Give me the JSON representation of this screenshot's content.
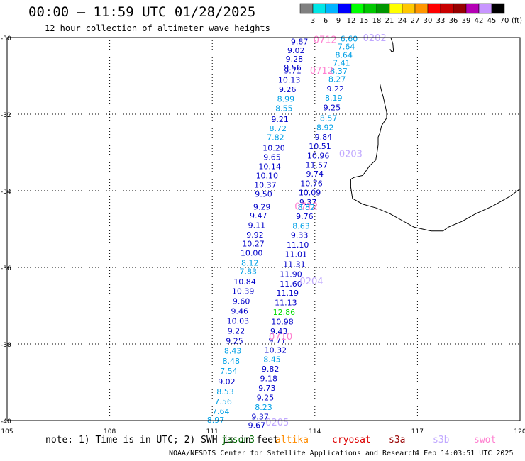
{
  "header": {
    "title": "00:00 – 11:59 UTC 01/28/2025",
    "subtitle": "12 hour collection of altimeter wave heights"
  },
  "color_scale": {
    "labels": [
      "3",
      "6",
      "9",
      "12",
      "15",
      "18",
      "21",
      "24",
      "27",
      "30",
      "33",
      "36",
      "39",
      "42",
      "45",
      "70"
    ],
    "unit": "(ft)",
    "colors": [
      "#808080",
      "#00e6e6",
      "#00b4ff",
      "#0000ff",
      "#00ff00",
      "#00c800",
      "#009600",
      "#ffff00",
      "#ffc800",
      "#ff9600",
      "#ff0000",
      "#c80000",
      "#960000",
      "#b400b4",
      "#c896ff",
      "#000000"
    ]
  },
  "map": {
    "lon_range": [
      105,
      120
    ],
    "lat_range": [
      -40,
      -30
    ],
    "lon_ticks": [
      "105",
      "108",
      "111",
      "114",
      "117",
      "120"
    ],
    "lat_ticks": [
      "-30",
      "-32",
      "-34",
      "-36",
      "-38",
      "-40"
    ],
    "coastline": [
      [
        115.9,
        -31.2
      ],
      [
        115.95,
        -31.4
      ],
      [
        116.0,
        -31.55
      ],
      [
        116.05,
        -31.75
      ],
      [
        116.1,
        -31.95
      ],
      [
        116.1,
        -32.1
      ],
      [
        115.95,
        -32.3
      ],
      [
        115.9,
        -32.5
      ],
      [
        115.85,
        -32.6
      ],
      [
        115.85,
        -32.8
      ],
      [
        115.82,
        -33.0
      ],
      [
        115.78,
        -33.2
      ],
      [
        115.6,
        -33.35
      ],
      [
        115.4,
        -33.6
      ],
      [
        115.15,
        -33.65
      ],
      [
        115.05,
        -33.7
      ],
      [
        115.05,
        -33.9
      ],
      [
        115.1,
        -34.2
      ],
      [
        115.4,
        -34.35
      ],
      [
        115.8,
        -34.45
      ],
      [
        116.2,
        -34.6
      ],
      [
        116.5,
        -34.75
      ],
      [
        116.9,
        -34.95
      ],
      [
        117.4,
        -35.05
      ],
      [
        117.75,
        -35.05
      ],
      [
        117.9,
        -34.95
      ],
      [
        118.3,
        -34.8
      ],
      [
        118.7,
        -34.6
      ],
      [
        119.2,
        -34.4
      ],
      [
        119.7,
        -34.15
      ],
      [
        120.0,
        -33.95
      ]
    ],
    "island": [
      [
        116.22,
        -30.0
      ],
      [
        116.28,
        -30.15
      ],
      [
        116.3,
        -30.35
      ],
      [
        116.25,
        -30.38
      ],
      [
        116.2,
        -30.3
      ]
    ]
  },
  "observations": [
    {
      "lon": 113.55,
      "lat": -30.1,
      "value": "9.87",
      "color": "#0000c8"
    },
    {
      "lon": 113.45,
      "lat": -30.33,
      "value": "9.02",
      "color": "#0000c8"
    },
    {
      "lon": 113.4,
      "lat": -30.56,
      "value": "9.28",
      "color": "#0000c8"
    },
    {
      "lon": 113.35,
      "lat": -30.78,
      "value": "9.56",
      "color": "#0000c8"
    },
    {
      "lon": 113.35,
      "lat": -30.86,
      "value": "9.71",
      "color": "#0000c8"
    },
    {
      "lon": 113.25,
      "lat": -31.1,
      "value": "10.13",
      "color": "#0000c8"
    },
    {
      "lon": 113.2,
      "lat": -31.35,
      "value": "9.26",
      "color": "#0000c8"
    },
    {
      "lon": 113.15,
      "lat": -31.6,
      "value": "8.99",
      "color": "#00a0e6"
    },
    {
      "lon": 113.1,
      "lat": -31.84,
      "value": "8.55",
      "color": "#00a0e6"
    },
    {
      "lon": 112.98,
      "lat": -32.13,
      "value": "9.21",
      "color": "#0000c8"
    },
    {
      "lon": 112.92,
      "lat": -32.37,
      "value": "8.72",
      "color": "#00a0e6"
    },
    {
      "lon": 112.85,
      "lat": -32.6,
      "value": "7.82",
      "color": "#00a0e6"
    },
    {
      "lon": 112.8,
      "lat": -32.88,
      "value": "10.20",
      "color": "#0000c8"
    },
    {
      "lon": 112.75,
      "lat": -33.12,
      "value": "9.65",
      "color": "#0000c8"
    },
    {
      "lon": 112.68,
      "lat": -33.36,
      "value": "10.14",
      "color": "#0000c8"
    },
    {
      "lon": 112.6,
      "lat": -33.6,
      "value": "10.10",
      "color": "#0000c8"
    },
    {
      "lon": 112.55,
      "lat": -33.84,
      "value": "10.37",
      "color": "#0000c8"
    },
    {
      "lon": 112.5,
      "lat": -34.08,
      "value": "9.50",
      "color": "#0000c8"
    },
    {
      "lon": 112.45,
      "lat": -34.42,
      "value": "9.29",
      "color": "#0000c8"
    },
    {
      "lon": 112.35,
      "lat": -34.65,
      "value": "9.47",
      "color": "#0000c8"
    },
    {
      "lon": 112.3,
      "lat": -34.9,
      "value": "9.11",
      "color": "#0000c8"
    },
    {
      "lon": 112.25,
      "lat": -35.15,
      "value": "9.92",
      "color": "#0000c8"
    },
    {
      "lon": 112.2,
      "lat": -35.38,
      "value": "10.27",
      "color": "#0000c8"
    },
    {
      "lon": 112.15,
      "lat": -35.62,
      "value": "10.00",
      "color": "#0000c8"
    },
    {
      "lon": 112.1,
      "lat": -35.88,
      "value": "8.12",
      "color": "#00a0e6"
    },
    {
      "lon": 112.05,
      "lat": -36.1,
      "value": "7.83",
      "color": "#00a0e6"
    },
    {
      "lon": 111.95,
      "lat": -36.37,
      "value": "10.84",
      "color": "#0000c8"
    },
    {
      "lon": 111.9,
      "lat": -36.62,
      "value": "10.39",
      "color": "#0000c8"
    },
    {
      "lon": 111.85,
      "lat": -36.88,
      "value": "9.60",
      "color": "#0000c8"
    },
    {
      "lon": 111.8,
      "lat": -37.14,
      "value": "9.46",
      "color": "#0000c8"
    },
    {
      "lon": 111.75,
      "lat": -37.4,
      "value": "10.03",
      "color": "#0000c8"
    },
    {
      "lon": 111.7,
      "lat": -37.66,
      "value": "9.22",
      "color": "#0000c8"
    },
    {
      "lon": 111.65,
      "lat": -37.92,
      "value": "9.25",
      "color": "#0000c8"
    },
    {
      "lon": 111.6,
      "lat": -38.18,
      "value": "8.43",
      "color": "#00a0e6"
    },
    {
      "lon": 111.55,
      "lat": -38.44,
      "value": "8.48",
      "color": "#00a0e6"
    },
    {
      "lon": 111.48,
      "lat": -38.7,
      "value": "7.54",
      "color": "#00a0e6"
    },
    {
      "lon": 111.42,
      "lat": -38.98,
      "value": "9.02",
      "color": "#0000c8"
    },
    {
      "lon": 111.38,
      "lat": -39.24,
      "value": "8.53",
      "color": "#00a0e6"
    },
    {
      "lon": 111.32,
      "lat": -39.5,
      "value": "7.56",
      "color": "#00a0e6"
    },
    {
      "lon": 111.25,
      "lat": -39.76,
      "value": "7.64",
      "color": "#00a0e6"
    },
    {
      "lon": 111.1,
      "lat": -39.98,
      "value": "8.97",
      "color": "#00a0e6"
    },
    {
      "lon": 115.0,
      "lat": -30.03,
      "value": "6.60",
      "color": "#00a0e6"
    },
    {
      "lon": 114.92,
      "lat": -30.23,
      "value": "7.64",
      "color": "#00a0e6"
    },
    {
      "lon": 114.85,
      "lat": -30.45,
      "value": "8.64",
      "color": "#00a0e6"
    },
    {
      "lon": 114.78,
      "lat": -30.66,
      "value": "7.41",
      "color": "#00a0e6"
    },
    {
      "lon": 114.7,
      "lat": -30.87,
      "value": "8.37",
      "color": "#00a0e6"
    },
    {
      "lon": 114.65,
      "lat": -31.08,
      "value": "8.27",
      "color": "#00a0e6"
    },
    {
      "lon": 114.6,
      "lat": -31.33,
      "value": "9.22",
      "color": "#0000c8"
    },
    {
      "lon": 114.55,
      "lat": -31.57,
      "value": "8.19",
      "color": "#00a0e6"
    },
    {
      "lon": 114.5,
      "lat": -31.82,
      "value": "9.25",
      "color": "#0000c8"
    },
    {
      "lon": 114.4,
      "lat": -32.1,
      "value": "8.57",
      "color": "#00a0e6"
    },
    {
      "lon": 114.3,
      "lat": -32.34,
      "value": "8.92",
      "color": "#00a0e6"
    },
    {
      "lon": 114.25,
      "lat": -32.59,
      "value": "9.84",
      "color": "#0000c8"
    },
    {
      "lon": 114.15,
      "lat": -32.83,
      "value": "10.51",
      "color": "#0000c8"
    },
    {
      "lon": 114.1,
      "lat": -33.08,
      "value": "10.96",
      "color": "#0000c8"
    },
    {
      "lon": 114.05,
      "lat": -33.32,
      "value": "11.57",
      "color": "#0000c8"
    },
    {
      "lon": 114.0,
      "lat": -33.56,
      "value": "9.74",
      "color": "#0000c8"
    },
    {
      "lon": 113.9,
      "lat": -33.81,
      "value": "10.76",
      "color": "#0000c8"
    },
    {
      "lon": 113.85,
      "lat": -34.05,
      "value": "10.09",
      "color": "#0000c8"
    },
    {
      "lon": 113.8,
      "lat": -34.3,
      "value": "9.37",
      "color": "#0000c8"
    },
    {
      "lon": 113.75,
      "lat": -34.43,
      "value": "8.82",
      "color": "#00a0e6"
    },
    {
      "lon": 113.7,
      "lat": -34.67,
      "value": "9.76",
      "color": "#0000c8"
    },
    {
      "lon": 113.6,
      "lat": -34.92,
      "value": "8.63",
      "color": "#00a0e6"
    },
    {
      "lon": 113.55,
      "lat": -35.16,
      "value": "9.33",
      "color": "#0000c8"
    },
    {
      "lon": 113.5,
      "lat": -35.41,
      "value": "11.10",
      "color": "#0000c8"
    },
    {
      "lon": 113.45,
      "lat": -35.66,
      "value": "11.01",
      "color": "#0000c8"
    },
    {
      "lon": 113.4,
      "lat": -35.92,
      "value": "11.31",
      "color": "#0000c8"
    },
    {
      "lon": 113.3,
      "lat": -36.18,
      "value": "11.90",
      "color": "#0000c8"
    },
    {
      "lon": 113.3,
      "lat": -36.43,
      "value": "11.60",
      "color": "#0000c8"
    },
    {
      "lon": 113.2,
      "lat": -36.67,
      "value": "11.19",
      "color": "#0000c8"
    },
    {
      "lon": 113.15,
      "lat": -36.92,
      "value": "11.13",
      "color": "#0000c8"
    },
    {
      "lon": 113.1,
      "lat": -37.17,
      "value": "12.86",
      "color": "#00dc00"
    },
    {
      "lon": 113.05,
      "lat": -37.42,
      "value": "10.98",
      "color": "#0000c8"
    },
    {
      "lon": 112.95,
      "lat": -37.67,
      "value": "9.43",
      "color": "#0000c8"
    },
    {
      "lon": 112.9,
      "lat": -37.91,
      "value": "9.71",
      "color": "#0000c8"
    },
    {
      "lon": 112.85,
      "lat": -38.16,
      "value": "10.32",
      "color": "#0000c8"
    },
    {
      "lon": 112.75,
      "lat": -38.4,
      "value": "8.45",
      "color": "#00a0e6"
    },
    {
      "lon": 112.7,
      "lat": -38.65,
      "value": "9.82",
      "color": "#0000c8"
    },
    {
      "lon": 112.65,
      "lat": -38.9,
      "value": "9.18",
      "color": "#0000c8"
    },
    {
      "lon": 112.6,
      "lat": -39.15,
      "value": "9.73",
      "color": "#0000c8"
    },
    {
      "lon": 112.55,
      "lat": -39.4,
      "value": "9.25",
      "color": "#0000c8"
    },
    {
      "lon": 112.5,
      "lat": -39.65,
      "value": "8.23",
      "color": "#00a0e6"
    },
    {
      "lon": 112.4,
      "lat": -39.9,
      "value": "9.37",
      "color": "#0000c8"
    },
    {
      "lon": 112.3,
      "lat": -40.12,
      "value": "9.67",
      "color": "#0000c8"
    }
  ],
  "pass_times": [
    {
      "lon": 114.3,
      "lat": -30.05,
      "text": "0712",
      "color": "#ff80d0"
    },
    {
      "lon": 115.75,
      "lat": -30.0,
      "text": "0202",
      "color": "#c0a8ff"
    },
    {
      "lon": 114.2,
      "lat": -30.85,
      "text": "0712",
      "color": "#ff80d0"
    },
    {
      "lon": 115.05,
      "lat": -33.03,
      "text": "0203",
      "color": "#c0a8ff"
    },
    {
      "lon": 113.75,
      "lat": -34.4,
      "text": "0712",
      "color": "#ff80d0"
    },
    {
      "lon": 113.9,
      "lat": -36.35,
      "text": "0204",
      "color": "#c0a8ff"
    },
    {
      "lon": 113.0,
      "lat": -37.8,
      "text": "0710",
      "color": "#ff80d0"
    },
    {
      "lon": 112.9,
      "lat": -40.04,
      "text": "0205",
      "color": "#c0a8ff"
    }
  ],
  "footer": {
    "note": "note:  1) Time is in UTC; 2) SWH is in feet",
    "satellites": [
      {
        "name": "jason3",
        "color": "#006400"
      },
      {
        "name": "altika",
        "color": "#ff8c00"
      },
      {
        "name": "cryosat",
        "color": "#dc0000"
      },
      {
        "name": "s3a",
        "color": "#960000"
      },
      {
        "name": "s3b",
        "color": "#c0a8ff"
      },
      {
        "name": "swot",
        "color": "#ff80d0"
      }
    ],
    "credit": "NOAA/NESDIS Center for Satellite Applications and Research",
    "timestamp": "4 Feb 14:03:51 UTC 2025"
  }
}
